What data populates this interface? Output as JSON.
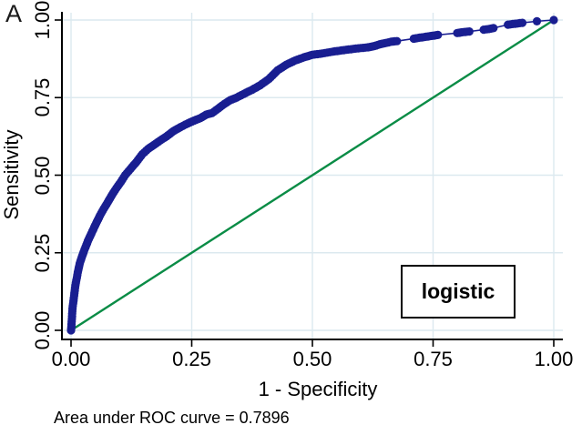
{
  "panel_label": "A",
  "caption": "Area under ROC curve = 0.7896",
  "legend": {
    "label": "logistic",
    "position": "bottom-right"
  },
  "colors": {
    "roc_curve": "#191E91",
    "reference_line": "#0A8C46",
    "gridline": "#DCE9EF",
    "axis": "#000000",
    "background": "#FFFFFF"
  },
  "chart_data": {
    "type": "line",
    "title": "",
    "xlabel": "1 - Specificity",
    "ylabel": "Sensitivity",
    "xlim": [
      0,
      1
    ],
    "ylim": [
      0,
      1
    ],
    "grid": true,
    "x_ticks": [
      "0.00",
      "0.25",
      "0.50",
      "0.75",
      "1.00"
    ],
    "y_ticks": [
      "0.00",
      "0.25",
      "0.50",
      "0.75",
      "1.00"
    ],
    "annotation": "Area under ROC curve = 0.7896",
    "auc": 0.7896,
    "series": [
      {
        "name": "logistic",
        "style": "dot-band",
        "color": "#191E91",
        "points": [
          [
            0.0,
            0.0
          ],
          [
            0.001,
            0.02
          ],
          [
            0.002,
            0.045
          ],
          [
            0.003,
            0.07
          ],
          [
            0.005,
            0.095
          ],
          [
            0.007,
            0.12
          ],
          [
            0.009,
            0.145
          ],
          [
            0.012,
            0.17
          ],
          [
            0.015,
            0.195
          ],
          [
            0.018,
            0.215
          ],
          [
            0.022,
            0.235
          ],
          [
            0.026,
            0.252
          ],
          [
            0.03,
            0.268
          ],
          [
            0.035,
            0.288
          ],
          [
            0.04,
            0.305
          ],
          [
            0.046,
            0.325
          ],
          [
            0.052,
            0.345
          ],
          [
            0.06,
            0.37
          ],
          [
            0.068,
            0.392
          ],
          [
            0.076,
            0.413
          ],
          [
            0.085,
            0.437
          ],
          [
            0.094,
            0.458
          ],
          [
            0.103,
            0.478
          ],
          [
            0.112,
            0.5
          ],
          [
            0.123,
            0.52
          ],
          [
            0.135,
            0.542
          ],
          [
            0.148,
            0.568
          ],
          [
            0.16,
            0.585
          ],
          [
            0.172,
            0.598
          ],
          [
            0.185,
            0.612
          ],
          [
            0.198,
            0.625
          ],
          [
            0.212,
            0.642
          ],
          [
            0.227,
            0.655
          ],
          [
            0.242,
            0.667
          ],
          [
            0.255,
            0.676
          ],
          [
            0.268,
            0.684
          ],
          [
            0.28,
            0.695
          ],
          [
            0.292,
            0.7
          ],
          [
            0.305,
            0.715
          ],
          [
            0.318,
            0.73
          ],
          [
            0.33,
            0.742
          ],
          [
            0.343,
            0.75
          ],
          [
            0.358,
            0.762
          ],
          [
            0.375,
            0.775
          ],
          [
            0.392,
            0.79
          ],
          [
            0.41,
            0.81
          ],
          [
            0.428,
            0.838
          ],
          [
            0.446,
            0.856
          ],
          [
            0.465,
            0.87
          ],
          [
            0.483,
            0.88
          ],
          [
            0.5,
            0.888
          ],
          [
            0.52,
            0.892
          ],
          [
            0.542,
            0.898
          ],
          [
            0.565,
            0.903
          ],
          [
            0.59,
            0.908
          ],
          [
            0.615,
            0.912
          ],
          [
            0.628,
            0.916
          ],
          [
            0.64,
            0.922
          ],
          [
            0.652,
            0.926
          ],
          [
            0.663,
            0.93
          ],
          [
            0.675,
            0.932
          ],
          [
            0.71,
            0.94
          ],
          [
            0.722,
            0.943
          ],
          [
            0.735,
            0.946
          ],
          [
            0.748,
            0.949
          ],
          [
            0.76,
            0.952
          ],
          [
            0.8,
            0.958
          ],
          [
            0.812,
            0.961
          ],
          [
            0.825,
            0.963
          ],
          [
            0.855,
            0.969
          ],
          [
            0.866,
            0.971
          ],
          [
            0.875,
            0.974
          ],
          [
            0.905,
            0.985
          ],
          [
            0.915,
            0.987
          ],
          [
            0.925,
            0.989
          ],
          [
            0.935,
            0.991
          ],
          [
            0.965,
            0.996
          ],
          [
            1.0,
            1.0
          ]
        ]
      },
      {
        "name": "reference",
        "style": "line",
        "color": "#0A8C46",
        "points": [
          [
            0,
            0
          ],
          [
            1,
            1
          ]
        ]
      }
    ],
    "legend_label": "logistic"
  }
}
